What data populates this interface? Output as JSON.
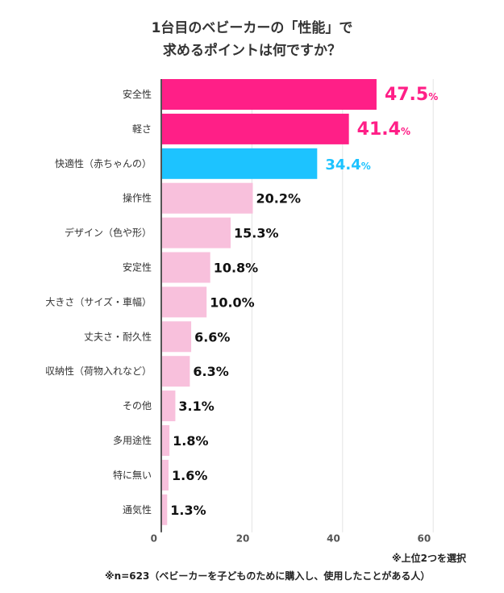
{
  "chart_data": {
    "type": "bar",
    "orientation": "horizontal",
    "title_lines": [
      "1台目のベビーカーの「性能」で",
      "求めるポイントは何ですか？"
    ],
    "categories": [
      "安全性",
      "軽さ",
      "快適性（赤ちゃんの）",
      "操作性",
      "デザイン（色や形）",
      "安定性",
      "大きさ（サイズ・車幅）",
      "丈夫さ・耐久性",
      "収納性（荷物入れなど）",
      "その他",
      "多用途性",
      "特に無い",
      "通気性"
    ],
    "values": [
      47.5,
      41.4,
      34.4,
      20.2,
      15.3,
      10.8,
      10.0,
      6.6,
      6.3,
      3.1,
      1.8,
      1.6,
      1.3
    ],
    "value_labels": [
      "47.5",
      "41.4",
      "34.4",
      "20.2%",
      "15.3%",
      "10.8%",
      "10.0%",
      "6.6%",
      "6.3%",
      "3.1%",
      "1.8%",
      "1.6%",
      "1.3%"
    ],
    "highlight_suffix": "%",
    "bar_colors": [
      "#FF1F87",
      "#FF1F87",
      "#1DC3FF",
      "#F8C0DC",
      "#F8C0DC",
      "#F8C0DC",
      "#F8C0DC",
      "#F8C0DC",
      "#F8C0DC",
      "#F8C0DC",
      "#F8C0DC",
      "#F8C0DC",
      "#F8C0DC"
    ],
    "label_colors": [
      "#FF1F87",
      "#FF1F87",
      "#1DC3FF",
      "#111111",
      "#111111",
      "#111111",
      "#111111",
      "#111111",
      "#111111",
      "#111111",
      "#111111",
      "#111111",
      "#111111"
    ],
    "xticks": [
      "0",
      "20",
      "40",
      "60"
    ],
    "xlim": [
      0,
      60
    ],
    "grid": true,
    "unit": "%"
  },
  "notes": {
    "selection": "※上位2つを選択",
    "sample": "※n=623（ベビーカーを子どものために購入し、使用したことがある人）"
  }
}
